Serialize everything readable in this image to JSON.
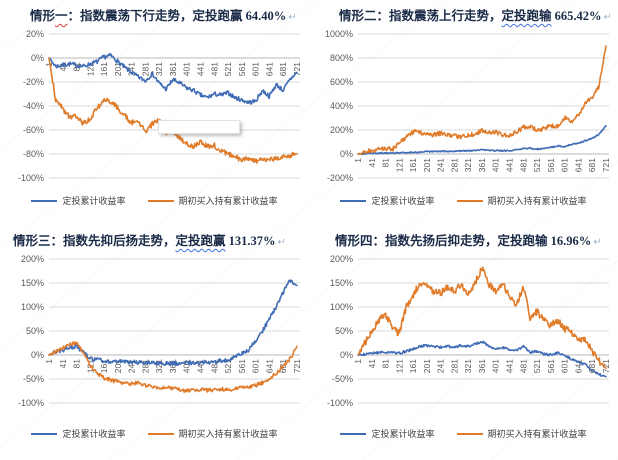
{
  "page": {
    "background": "#ffffff"
  },
  "colors": {
    "series_blue": "#3f6cb5",
    "series_orange": "#e07b2a",
    "gridline": "#d9d9d9",
    "axis_line": "#b9b9b9",
    "tick_text": "#595959",
    "title_text": "#1b2b47",
    "legend_text": "#3f3f3f",
    "spellcheck_red": "#e03a2b",
    "spellcheck_blue": "#3b6fe0",
    "return_mark": "#9db3c8"
  },
  "chart_data": [
    {
      "type": "line",
      "title": "情形一：指数震荡下行走势，定投跑赢 64.40%",
      "title_segments": [
        {
          "text": "情形",
          "wavy": null
        },
        {
          "text": "一",
          "wavy": "red"
        },
        {
          "text": "：指数震荡下行走势，定投跑赢 ",
          "wavy": null
        },
        {
          "text": "64.40%",
          "wavy": null
        }
      ],
      "return_mark": "↵",
      "xlabel": "",
      "ylabel": "",
      "ylim": [
        -100,
        20
      ],
      "ytick_step": 20,
      "ytick_labels": [
        "20%",
        "0%",
        "-20%",
        "-40%",
        "-60%",
        "-80%",
        "-100%"
      ],
      "x_ticks": [
        1,
        41,
        81,
        121,
        161,
        201,
        241,
        281,
        321,
        361,
        401,
        441,
        481,
        521,
        561,
        601,
        641,
        681,
        721
      ],
      "xlim": [
        1,
        730
      ],
      "x_keypoint_start": 1,
      "x_keypoint_step": 20,
      "grid": true,
      "legend_position": "bottom",
      "callout_box": true,
      "series": [
        {
          "name": "定投累计收益率",
          "color": "#3f6cb5",
          "jitter": 1.8,
          "values": [
            0,
            -7,
            -6,
            -5,
            -6,
            -7,
            -5,
            -3,
            1,
            2,
            -3,
            -8,
            -12,
            -16,
            -19,
            -13,
            -21,
            -26,
            -18,
            -21,
            -25,
            -27,
            -31,
            -33,
            -30,
            -31,
            -29,
            -33,
            -35,
            -37,
            -36,
            -27,
            -32,
            -22,
            -27,
            -18,
            -12
          ]
        },
        {
          "name": "期初买入持有累计收益率",
          "color": "#e07b2a",
          "jitter": 2.2,
          "values": [
            0,
            -36,
            -42,
            -50,
            -48,
            -55,
            -50,
            -42,
            -35,
            -36,
            -42,
            -48,
            -54,
            -52,
            -62,
            -55,
            -52,
            -62,
            -60,
            -67,
            -71,
            -74,
            -70,
            -74,
            -73,
            -78,
            -80,
            -82,
            -85,
            -84,
            -86,
            -84,
            -85,
            -83,
            -82,
            -81,
            -80
          ]
        }
      ]
    },
    {
      "type": "line",
      "title": "情形二：指数震荡上行走势，定投跑输 665.42%",
      "title_segments": [
        {
          "text": "情形二：指数震荡上行走势，",
          "wavy": null
        },
        {
          "text": "定投跑输",
          "wavy": "blue"
        },
        {
          "text": " 665.42%",
          "wavy": null
        }
      ],
      "return_mark": "↵",
      "xlabel": "",
      "ylabel": "",
      "ylim": [
        -200,
        1000
      ],
      "ytick_step": 200,
      "ytick_labels": [
        "1000%",
        "800%",
        "600%",
        "400%",
        "200%",
        "0%",
        "-200%"
      ],
      "x_ticks": [
        1,
        41,
        81,
        121,
        161,
        201,
        241,
        281,
        321,
        361,
        401,
        441,
        481,
        521,
        561,
        601,
        641,
        681,
        721
      ],
      "xlim": [
        1,
        730
      ],
      "x_keypoint_start": 1,
      "x_keypoint_step": 20,
      "grid": true,
      "legend_position": "bottom",
      "callout_box": false,
      "series": [
        {
          "name": "定投累计收益率",
          "color": "#3f6cb5",
          "jitter": 5,
          "values": [
            0,
            3,
            5,
            6,
            8,
            8,
            10,
            12,
            14,
            16,
            20,
            20,
            22,
            22,
            24,
            25,
            28,
            30,
            35,
            30,
            28,
            28,
            26,
            35,
            45,
            50,
            40,
            48,
            55,
            68,
            62,
            80,
            90,
            110,
            130,
            165,
            235
          ]
        },
        {
          "name": "期初买入持有累计收益率",
          "color": "#e07b2a",
          "jitter": 18,
          "values": [
            0,
            15,
            30,
            40,
            45,
            40,
            90,
            140,
            185,
            180,
            168,
            160,
            172,
            158,
            150,
            143,
            158,
            168,
            198,
            172,
            182,
            158,
            152,
            182,
            222,
            228,
            196,
            212,
            238,
            228,
            300,
            265,
            330,
            420,
            470,
            560,
            900
          ]
        }
      ]
    },
    {
      "type": "line",
      "title": "情形三：指数先抑后扬走势，定投跑赢 131.37%",
      "title_segments": [
        {
          "text": "情形三：指数先抑后扬走势，",
          "wavy": null
        },
        {
          "text": "定投跑赢",
          "wavy": "blue"
        },
        {
          "text": " 131.37%",
          "wavy": null
        }
      ],
      "return_mark": "↵",
      "xlabel": "",
      "ylabel": "",
      "ylim": [
        -100,
        200
      ],
      "ytick_step": 50,
      "ytick_labels": [
        "200%",
        "150%",
        "100%",
        "50%",
        "0%",
        "-50%",
        "-100%"
      ],
      "x_ticks": [
        1,
        41,
        81,
        121,
        161,
        201,
        241,
        281,
        321,
        361,
        401,
        441,
        481,
        521,
        561,
        601,
        641,
        681,
        721
      ],
      "xlim": [
        1,
        730
      ],
      "x_keypoint_start": 1,
      "x_keypoint_step": 20,
      "grid": true,
      "legend_position": "bottom",
      "callout_box": false,
      "series": [
        {
          "name": "定投累计收益率",
          "color": "#3f6cb5",
          "jitter": 4,
          "values": [
            0,
            6,
            10,
            15,
            18,
            5,
            -8,
            -10,
            -12,
            -14,
            -13,
            -15,
            -14,
            -16,
            -15,
            -17,
            -16,
            -18,
            -17,
            -18,
            -16,
            -17,
            -15,
            -16,
            -14,
            -12,
            -10,
            -5,
            3,
            10,
            30,
            50,
            75,
            100,
            130,
            155,
            145
          ]
        },
        {
          "name": "期初买入持有累计收益率",
          "color": "#e07b2a",
          "jitter": 4,
          "values": [
            0,
            8,
            15,
            22,
            25,
            5,
            -22,
            -38,
            -48,
            -52,
            -56,
            -58,
            -60,
            -58,
            -63,
            -66,
            -68,
            -67,
            -70,
            -72,
            -74,
            -73,
            -72,
            -74,
            -72,
            -71,
            -72,
            -70,
            -68,
            -66,
            -63,
            -58,
            -50,
            -38,
            -25,
            -8,
            18
          ]
        }
      ]
    },
    {
      "type": "line",
      "title": "情形四：指数先扬后抑走势，定投跑输 16.96%",
      "title_segments": [
        {
          "text": "情形四：指数先扬后抑走势，定投跑输 16.96%",
          "wavy": null
        }
      ],
      "return_mark": "↵",
      "xlabel": "",
      "ylabel": "",
      "ylim": [
        -100,
        200
      ],
      "ytick_step": 50,
      "ytick_labels": [
        "200%",
        "150%",
        "100%",
        "50%",
        "0%",
        "-50%",
        "-100%"
      ],
      "x_ticks": [
        1,
        41,
        81,
        121,
        161,
        201,
        241,
        281,
        321,
        361,
        401,
        441,
        481,
        521,
        561,
        601,
        641,
        681,
        721
      ],
      "xlim": [
        1,
        730
      ],
      "x_keypoint_start": 1,
      "x_keypoint_step": 20,
      "grid": true,
      "legend_position": "bottom",
      "callout_box": false,
      "series": [
        {
          "name": "定投累计收益率",
          "color": "#3f6cb5",
          "jitter": 2.5,
          "values": [
            0,
            2,
            4,
            5,
            6,
            5,
            4,
            8,
            12,
            18,
            20,
            18,
            16,
            18,
            17,
            20,
            18,
            22,
            28,
            18,
            12,
            15,
            12,
            10,
            18,
            5,
            8,
            2,
            0,
            5,
            -2,
            -8,
            -14,
            -20,
            -32,
            -40,
            -45
          ]
        },
        {
          "name": "期初买入持有累计收益率",
          "color": "#e07b2a",
          "jitter": 7,
          "values": [
            0,
            25,
            50,
            72,
            85,
            55,
            45,
            100,
            125,
            150,
            148,
            132,
            128,
            140,
            132,
            148,
            128,
            150,
            182,
            148,
            132,
            150,
            122,
            105,
            142,
            78,
            90,
            72,
            62,
            72,
            55,
            48,
            28,
            35,
            8,
            -12,
            -28
          ]
        }
      ]
    }
  ]
}
